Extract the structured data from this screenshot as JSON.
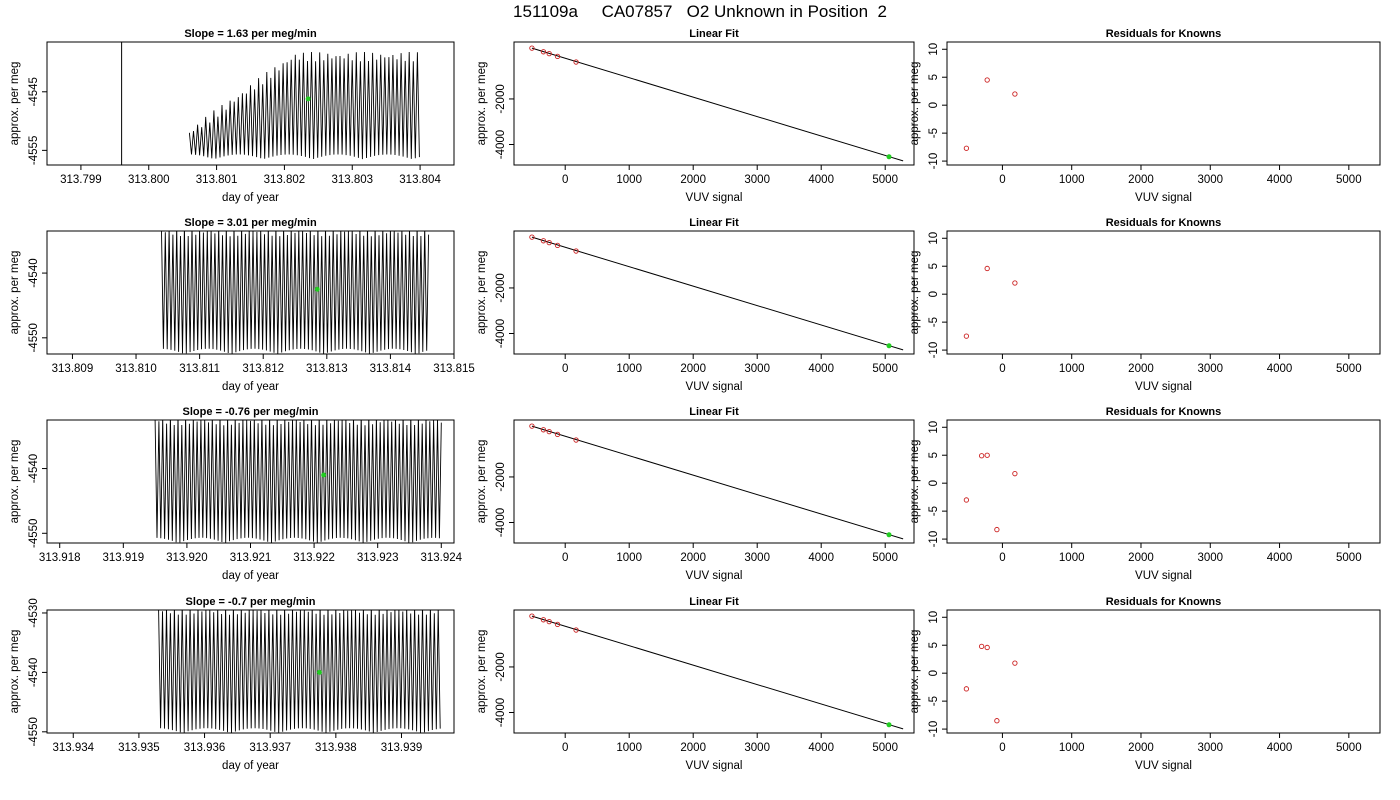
{
  "page_title": "151109a     CA07857   O2 Unknown in Position  2",
  "colors": {
    "trace": "#000000",
    "known_points": "#cc2222",
    "unknown_point": "#22cc22",
    "axes": "#000000"
  },
  "chart_data": [
    {
      "type": "line",
      "row": 0,
      "col": 0,
      "title": "Slope =  1.63  per meg/min",
      "xlabel": "day of year",
      "ylabel": "approx. per meg",
      "xlim": [
        313.7985,
        313.8045
      ],
      "ylim": [
        -4557.5,
        -4536.5
      ],
      "xticks": [
        313.799,
        313.8,
        313.801,
        313.802,
        313.803,
        313.804
      ],
      "xtick_labels": [
        "313.799",
        "313.800",
        "313.801",
        "313.802",
        "313.803",
        "313.804"
      ],
      "yticks": [
        -4555,
        -4545
      ],
      "ytick_labels": [
        "-4555",
        "-4545"
      ],
      "oscillation": {
        "start": 313.8006,
        "end": 313.804,
        "period": 6e-05,
        "upper_start": -4552,
        "upper_end": -4539,
        "lower": -4556.5
      },
      "spike": {
        "x": 313.7996,
        "from": -4557.5,
        "to": -4536.5
      },
      "unknown_point": {
        "x": 313.80235,
        "y": -4546.2
      }
    },
    {
      "type": "line",
      "row": 1,
      "col": 0,
      "title": "Slope =  3.01  per meg/min",
      "xlabel": "day of year",
      "ylabel": "approx. per meg",
      "xlim": [
        313.8086,
        313.815
      ],
      "ylim": [
        -4552.5,
        -4533.5
      ],
      "xticks": [
        313.809,
        313.81,
        313.811,
        313.812,
        313.813,
        313.814,
        313.815
      ],
      "xtick_labels": [
        "313.809",
        "313.810",
        "313.811",
        "313.812",
        "313.813",
        "313.814",
        "313.815"
      ],
      "yticks": [
        -4550,
        -4540
      ],
      "ytick_labels": [
        "-4550",
        "-4540"
      ],
      "oscillation": {
        "start": 313.8104,
        "end": 313.8146,
        "period": 6e-05,
        "upper_start": -4533.5,
        "upper_end": -4533.5,
        "lower": -4552.5
      },
      "unknown_point": {
        "x": 313.81285,
        "y": -4542.5
      }
    },
    {
      "type": "line",
      "row": 2,
      "col": 0,
      "title": "Slope =  -0.76  per meg/min",
      "xlabel": "day of year",
      "ylabel": "approx. per meg",
      "xlim": [
        313.9178,
        313.9242
      ],
      "ylim": [
        -4551.5,
        -4532.5
      ],
      "xticks": [
        313.918,
        313.919,
        313.92,
        313.921,
        313.922,
        313.923,
        313.924
      ],
      "xtick_labels": [
        "313.918",
        "313.919",
        "313.920",
        "313.921",
        "313.922",
        "313.923",
        "313.924"
      ],
      "yticks": [
        -4550,
        -4540
      ],
      "ytick_labels": [
        "-4550",
        "-4540"
      ],
      "oscillation": {
        "start": 313.9195,
        "end": 313.924,
        "period": 6e-05,
        "upper_start": -4532.5,
        "upper_end": -4532.5,
        "lower": -4551.5
      },
      "unknown_point": {
        "x": 313.92215,
        "y": -4541.0
      }
    },
    {
      "type": "line",
      "row": 3,
      "col": 0,
      "title": "Slope =  -0.7  per meg/min",
      "xlabel": "day of year",
      "ylabel": "approx. per meg",
      "xlim": [
        313.9336,
        313.9398
      ],
      "ylim": [
        -4550.2,
        -4529.5
      ],
      "xticks": [
        313.934,
        313.935,
        313.936,
        313.937,
        313.938,
        313.939
      ],
      "xtick_labels": [
        "313.934",
        "313.935",
        "313.936",
        "313.937",
        "313.938",
        "313.939"
      ],
      "yticks": [
        -4550,
        -4540,
        -4530
      ],
      "ytick_labels": [
        "-4550",
        "-4540",
        "-4530"
      ],
      "oscillation": {
        "start": 313.9353,
        "end": 313.9396,
        "period": 6e-05,
        "upper_start": -4529.5,
        "upper_end": -4529.5,
        "lower": -4550.2
      },
      "unknown_point": {
        "x": 313.93775,
        "y": -4540.0
      }
    },
    {
      "type": "scatter",
      "row": 0,
      "col": 1,
      "title": "Linear Fit",
      "xlabel": "VUV signal",
      "ylabel": "approx. per meg",
      "xlim": [
        -800,
        5450
      ],
      "ylim": [
        -4900,
        500
      ],
      "xticks": [
        0,
        1000,
        2000,
        3000,
        4000,
        5000
      ],
      "xtick_labels": [
        "0",
        "1000",
        "2000",
        "3000",
        "4000",
        "5000"
      ],
      "yticks": [
        -4000,
        -2000
      ],
      "ytick_labels": [
        "-4000",
        "-2000"
      ],
      "fit_line": {
        "x": [
          -520,
          5280
        ],
        "y": [
          230,
          -4720
        ]
      },
      "known_points": [
        {
          "x": -520,
          "y": 230
        },
        {
          "x": -340,
          "y": 70
        },
        {
          "x": -250,
          "y": -10
        },
        {
          "x": -120,
          "y": -130
        },
        {
          "x": 170,
          "y": -380
        }
      ],
      "unknown_point": {
        "x": 5060,
        "y": -4540
      }
    },
    {
      "type": "scatter",
      "row": 1,
      "col": 1,
      "title": "Linear Fit",
      "xlabel": "VUV signal",
      "ylabel": "approx. per meg",
      "xlim": [
        -800,
        5450
      ],
      "ylim": [
        -4900,
        500
      ],
      "xticks": [
        0,
        1000,
        2000,
        3000,
        4000,
        5000
      ],
      "xtick_labels": [
        "0",
        "1000",
        "2000",
        "3000",
        "4000",
        "5000"
      ],
      "yticks": [
        -4000,
        -2000
      ],
      "ytick_labels": [
        "-4000",
        "-2000"
      ],
      "fit_line": {
        "x": [
          -520,
          5280
        ],
        "y": [
          230,
          -4720
        ]
      },
      "known_points": [
        {
          "x": -520,
          "y": 230
        },
        {
          "x": -340,
          "y": 70
        },
        {
          "x": -250,
          "y": -10
        },
        {
          "x": -120,
          "y": -130
        },
        {
          "x": 170,
          "y": -380
        }
      ],
      "unknown_point": {
        "x": 5060,
        "y": -4540
      }
    },
    {
      "type": "scatter",
      "row": 2,
      "col": 1,
      "title": "Linear Fit",
      "xlabel": "VUV signal",
      "ylabel": "approx. per meg",
      "xlim": [
        -800,
        5450
      ],
      "ylim": [
        -4900,
        500
      ],
      "xticks": [
        0,
        1000,
        2000,
        3000,
        4000,
        5000
      ],
      "xtick_labels": [
        "0",
        "1000",
        "2000",
        "3000",
        "4000",
        "5000"
      ],
      "yticks": [
        -4000,
        -2000
      ],
      "ytick_labels": [
        "-4000",
        "-2000"
      ],
      "fit_line": {
        "x": [
          -520,
          5280
        ],
        "y": [
          230,
          -4720
        ]
      },
      "known_points": [
        {
          "x": -520,
          "y": 230
        },
        {
          "x": -340,
          "y": 70
        },
        {
          "x": -250,
          "y": -10
        },
        {
          "x": -120,
          "y": -130
        },
        {
          "x": 170,
          "y": -380
        }
      ],
      "unknown_point": {
        "x": 5060,
        "y": -4540
      }
    },
    {
      "type": "scatter",
      "row": 3,
      "col": 1,
      "title": "Linear Fit",
      "xlabel": "VUV signal",
      "ylabel": "approx. per meg",
      "xlim": [
        -800,
        5450
      ],
      "ylim": [
        -4900,
        500
      ],
      "xticks": [
        0,
        1000,
        2000,
        3000,
        4000,
        5000
      ],
      "xtick_labels": [
        "0",
        "1000",
        "2000",
        "3000",
        "4000",
        "5000"
      ],
      "yticks": [
        -4000,
        -2000
      ],
      "ytick_labels": [
        "-4000",
        "-2000"
      ],
      "fit_line": {
        "x": [
          -520,
          5280
        ],
        "y": [
          230,
          -4720
        ]
      },
      "known_points": [
        {
          "x": -520,
          "y": 230
        },
        {
          "x": -340,
          "y": 70
        },
        {
          "x": -250,
          "y": -10
        },
        {
          "x": -120,
          "y": -130
        },
        {
          "x": 170,
          "y": -380
        }
      ],
      "unknown_point": {
        "x": 5060,
        "y": -4540
      }
    },
    {
      "type": "scatter",
      "row": 0,
      "col": 2,
      "title": "Residuals for Knowns",
      "xlabel": "VUV signal",
      "ylabel": "approx. per meg",
      "xlim": [
        -800,
        5450
      ],
      "ylim": [
        -10.7,
        11.3
      ],
      "xticks": [
        0,
        1000,
        2000,
        3000,
        4000,
        5000
      ],
      "xtick_labels": [
        "0",
        "1000",
        "2000",
        "3000",
        "4000",
        "5000"
      ],
      "yticks": [
        -10,
        -5,
        0,
        5,
        10
      ],
      "ytick_labels": [
        "-10",
        "-5",
        "0",
        "5",
        "10"
      ],
      "known_points": [
        {
          "x": -520,
          "y": -7.7
        },
        {
          "x": -220,
          "y": 4.5
        },
        {
          "x": 180,
          "y": 2.0
        }
      ]
    },
    {
      "type": "scatter",
      "row": 1,
      "col": 2,
      "title": "Residuals for Knowns",
      "xlabel": "VUV signal",
      "ylabel": "approx. per meg",
      "xlim": [
        -800,
        5450
      ],
      "ylim": [
        -10.7,
        11.3
      ],
      "xticks": [
        0,
        1000,
        2000,
        3000,
        4000,
        5000
      ],
      "xtick_labels": [
        "0",
        "1000",
        "2000",
        "3000",
        "4000",
        "5000"
      ],
      "yticks": [
        -10,
        -5,
        0,
        5,
        10
      ],
      "ytick_labels": [
        "-10",
        "-5",
        "0",
        "5",
        "10"
      ],
      "known_points": [
        {
          "x": -520,
          "y": -7.5
        },
        {
          "x": -220,
          "y": 4.6
        },
        {
          "x": 180,
          "y": 2.0
        }
      ]
    },
    {
      "type": "scatter",
      "row": 2,
      "col": 2,
      "title": "Residuals for Knowns",
      "xlabel": "VUV signal",
      "ylabel": "approx. per meg",
      "xlim": [
        -800,
        5450
      ],
      "ylim": [
        -10.7,
        11.3
      ],
      "xticks": [
        0,
        1000,
        2000,
        3000,
        4000,
        5000
      ],
      "xtick_labels": [
        "0",
        "1000",
        "2000",
        "3000",
        "4000",
        "5000"
      ],
      "yticks": [
        -10,
        -5,
        0,
        5,
        10
      ],
      "ytick_labels": [
        "-10",
        "-5",
        "0",
        "5",
        "10"
      ],
      "known_points": [
        {
          "x": -520,
          "y": -3.0
        },
        {
          "x": -300,
          "y": 4.9
        },
        {
          "x": -220,
          "y": 5.0
        },
        {
          "x": -80,
          "y": -8.3
        },
        {
          "x": 180,
          "y": 1.7
        }
      ]
    },
    {
      "type": "scatter",
      "row": 3,
      "col": 2,
      "title": "Residuals for Knowns",
      "xlabel": "VUV signal",
      "ylabel": "approx. per meg",
      "xlim": [
        -800,
        5450
      ],
      "ylim": [
        -10.7,
        11.3
      ],
      "xticks": [
        0,
        1000,
        2000,
        3000,
        4000,
        5000
      ],
      "xtick_labels": [
        "0",
        "1000",
        "2000",
        "3000",
        "4000",
        "5000"
      ],
      "yticks": [
        -10,
        -5,
        0,
        5,
        10
      ],
      "ytick_labels": [
        "-10",
        "-5",
        "0",
        "5",
        "10"
      ],
      "known_points": [
        {
          "x": -520,
          "y": -2.8
        },
        {
          "x": -300,
          "y": 4.8
        },
        {
          "x": -220,
          "y": 4.6
        },
        {
          "x": -80,
          "y": -8.5
        },
        {
          "x": 180,
          "y": 1.8
        }
      ]
    }
  ]
}
